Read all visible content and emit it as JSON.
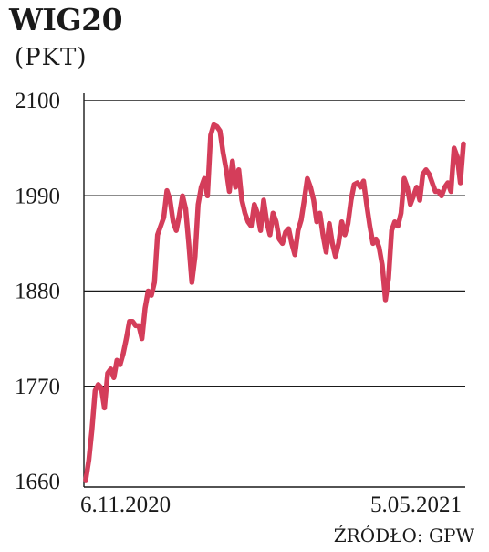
{
  "header": {
    "title": "WIG20",
    "unit": "(PKT)"
  },
  "source": "ŹRÓDŁO: GPW",
  "colors": {
    "line": "#d43d5a",
    "grid": "#1a1a1a",
    "axis": "#1a1a1a"
  },
  "chart_data": {
    "type": "line",
    "title": "WIG20",
    "ylabel": "(PKT)",
    "ylim": [
      1660,
      2100
    ],
    "yticks": [
      "1660",
      "1770",
      "1880",
      "1990",
      "2100"
    ],
    "yticks_values": [
      1660,
      1770,
      1880,
      1990,
      2100
    ],
    "x_labels": [
      "6.11.2020",
      "5.05.2021"
    ],
    "grid": true,
    "series": [
      {
        "values": [
          1662,
          1685,
          1720,
          1765,
          1772,
          1768,
          1745,
          1785,
          1790,
          1780,
          1800,
          1795,
          1808,
          1825,
          1845,
          1845,
          1840,
          1840,
          1825,
          1860,
          1880,
          1875,
          1890,
          1945,
          1955,
          1965,
          1996,
          1985,
          1960,
          1950,
          1968,
          1990,
          1975,
          1935,
          1890,
          1920,
          1980,
          2000,
          2010,
          1990,
          2060,
          2072,
          2070,
          2065,
          2040,
          2020,
          1995,
          2030,
          2000,
          2020,
          1985,
          1970,
          1960,
          1955,
          1980,
          1970,
          1950,
          1985,
          1960,
          1945,
          1970,
          1960,
          1940,
          1935,
          1948,
          1952,
          1935,
          1922,
          1950,
          1962,
          1985,
          2010,
          2000,
          1985,
          1960,
          1970,
          1945,
          1925,
          1958,
          1935,
          1920,
          1935,
          1960,
          1945,
          1958,
          1985,
          2003,
          2005,
          2000,
          2007,
          1980,
          1955,
          1935,
          1940,
          1930,
          1910,
          1870,
          1895,
          1950,
          1960,
          1955,
          1970,
          2010,
          2000,
          1980,
          1990,
          2000,
          1985,
          2015,
          2020,
          2015,
          2005,
          1995,
          1995,
          1990,
          2000,
          2005,
          1995,
          2045,
          2035,
          2005,
          2050
        ]
      }
    ]
  }
}
